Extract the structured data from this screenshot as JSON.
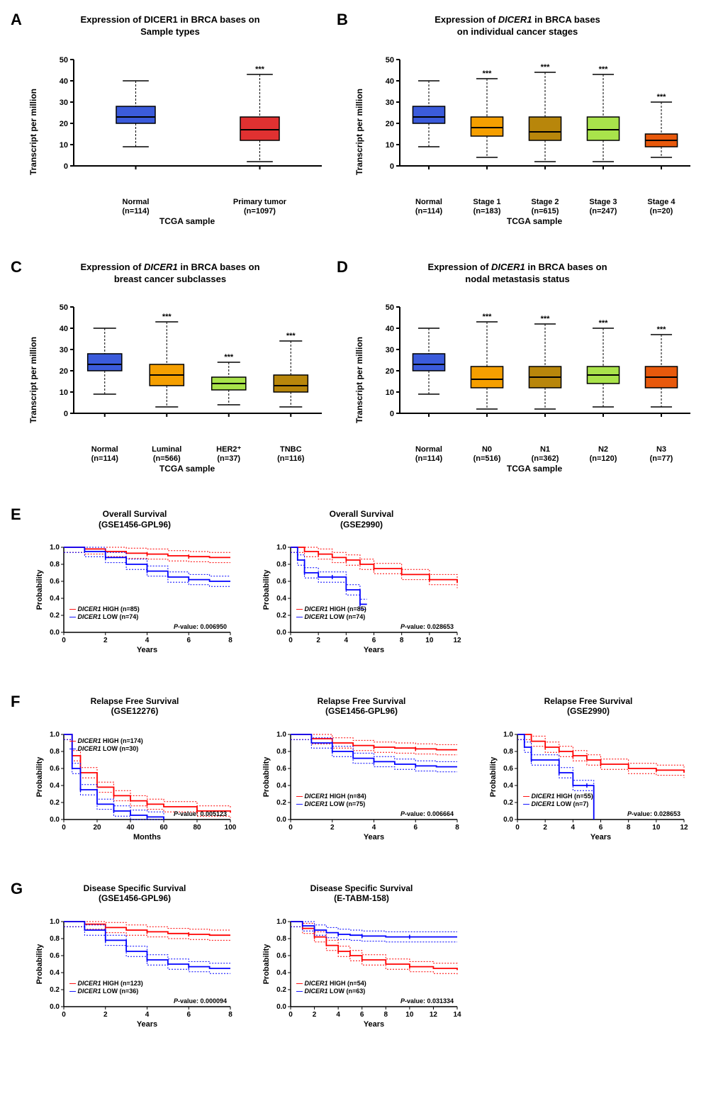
{
  "panelA": {
    "label": "A",
    "title_l1": "Expression of DICER1 in BRCA bases on",
    "title_l2": "Sample types",
    "ylabel": "Transcript per million",
    "xlabel": "TCGA sample",
    "ylim": [
      0,
      50
    ],
    "ytick_step": 10,
    "categories": [
      {
        "label_l1": "Normal",
        "label_l2": "(n=114)",
        "color": "#3b5bdb",
        "q1": 20,
        "med": 23,
        "q3": 28,
        "wlo": 9,
        "whi": 40,
        "sig": ""
      },
      {
        "label_l1": "Primary tumor",
        "label_l2": "(n=1097)",
        "color": "#e03131",
        "q1": 12,
        "med": 17,
        "q3": 23,
        "wlo": 2,
        "whi": 43,
        "sig": "***"
      }
    ]
  },
  "panelB": {
    "label": "B",
    "title_l1": "Expression of DICER1 in BRCA bases",
    "title_l2": "on individual cancer stages",
    "title_italic": true,
    "ylabel": "Transcript per million",
    "xlabel": "TCGA sample",
    "ylim": [
      0,
      50
    ],
    "ytick_step": 10,
    "categories": [
      {
        "label_l1": "Normal",
        "label_l2": "(n=114)",
        "color": "#3b5bdb",
        "q1": 20,
        "med": 23,
        "q3": 28,
        "wlo": 9,
        "whi": 40,
        "sig": ""
      },
      {
        "label_l1": "Stage 1",
        "label_l2": "(n=183)",
        "color": "#f59f00",
        "q1": 14,
        "med": 18,
        "q3": 23,
        "wlo": 4,
        "whi": 41,
        "sig": "***"
      },
      {
        "label_l1": "Stage 2",
        "label_l2": "(n=615)",
        "color": "#b8860b",
        "q1": 12,
        "med": 16,
        "q3": 23,
        "wlo": 2,
        "whi": 44,
        "sig": "***"
      },
      {
        "label_l1": "Stage 3",
        "label_l2": "(n=247)",
        "color": "#a9e34b",
        "q1": 12,
        "med": 17,
        "q3": 23,
        "wlo": 2,
        "whi": 43,
        "sig": "***"
      },
      {
        "label_l1": "Stage 4",
        "label_l2": "(n=20)",
        "color": "#e8590c",
        "q1": 9,
        "med": 12,
        "q3": 15,
        "wlo": 4,
        "whi": 30,
        "sig": "***"
      }
    ]
  },
  "panelC": {
    "label": "C",
    "title_l1": "Expression of DICER1 in BRCA bases on",
    "title_l2": "breast cancer subclasses",
    "title_italic": true,
    "ylabel": "Transcript per million",
    "xlabel": "TCGA sample",
    "ylim": [
      0,
      50
    ],
    "ytick_step": 10,
    "categories": [
      {
        "label_l1": "Normal",
        "label_l2": "(n=114)",
        "color": "#3b5bdb",
        "q1": 20,
        "med": 23,
        "q3": 28,
        "wlo": 9,
        "whi": 40,
        "sig": ""
      },
      {
        "label_l1": "Luminal",
        "label_l2": "(n=566)",
        "color": "#f59f00",
        "q1": 13,
        "med": 18,
        "q3": 23,
        "wlo": 3,
        "whi": 43,
        "sig": "***"
      },
      {
        "label_l1": "HER2⁺",
        "label_l2": "(n=37)",
        "color": "#a9e34b",
        "q1": 11,
        "med": 14,
        "q3": 17,
        "wlo": 4,
        "whi": 24,
        "sig": "***"
      },
      {
        "label_l1": "TNBC",
        "label_l2": "(n=116)",
        "color": "#b8860b",
        "q1": 10,
        "med": 13,
        "q3": 18,
        "wlo": 3,
        "whi": 34,
        "sig": "***"
      }
    ]
  },
  "panelD": {
    "label": "D",
    "title_l1": "Expression of DICER1 in BRCA bases on",
    "title_l2": "nodal metastasis status",
    "title_italic": true,
    "ylabel": "Transcript per million",
    "xlabel": "TCGA sample",
    "ylim": [
      0,
      50
    ],
    "ytick_step": 10,
    "categories": [
      {
        "label_l1": "Normal",
        "label_l2": "(n=114)",
        "color": "#3b5bdb",
        "q1": 20,
        "med": 23,
        "q3": 28,
        "wlo": 9,
        "whi": 40,
        "sig": ""
      },
      {
        "label_l1": "N0",
        "label_l2": "(n=516)",
        "color": "#f59f00",
        "q1": 12,
        "med": 16,
        "q3": 22,
        "wlo": 2,
        "whi": 43,
        "sig": "***"
      },
      {
        "label_l1": "N1",
        "label_l2": "(n=362)",
        "color": "#b8860b",
        "q1": 12,
        "med": 17,
        "q3": 22,
        "wlo": 2,
        "whi": 42,
        "sig": "***"
      },
      {
        "label_l1": "N2",
        "label_l2": "(n=120)",
        "color": "#a9e34b",
        "q1": 14,
        "med": 18,
        "q3": 22,
        "wlo": 3,
        "whi": 40,
        "sig": "***"
      },
      {
        "label_l1": "N3",
        "label_l2": "(n=77)",
        "color": "#e8590c",
        "q1": 12,
        "med": 17,
        "q3": 22,
        "wlo": 3,
        "whi": 37,
        "sig": "***"
      }
    ]
  },
  "panelE": {
    "label": "E",
    "charts": [
      {
        "title_l1": "Overall Survival",
        "title_l2": "(GSE1456-GPL96)",
        "xlabel": "Years",
        "ylabel": "Probability",
        "xmax": 8,
        "xstep": 2,
        "high_n": "85",
        "low_n": "74",
        "pvalue": "0.006950",
        "high_curve": [
          [
            0,
            1.0
          ],
          [
            1,
            0.98
          ],
          [
            2,
            0.95
          ],
          [
            3,
            0.93
          ],
          [
            4,
            0.92
          ],
          [
            5,
            0.9
          ],
          [
            6,
            0.89
          ],
          [
            7,
            0.88
          ],
          [
            8,
            0.88
          ]
        ],
        "low_curve": [
          [
            0,
            1.0
          ],
          [
            1,
            0.95
          ],
          [
            2,
            0.88
          ],
          [
            3,
            0.8
          ],
          [
            4,
            0.72
          ],
          [
            5,
            0.65
          ],
          [
            6,
            0.62
          ],
          [
            7,
            0.6
          ],
          [
            8,
            0.6
          ]
        ]
      },
      {
        "title_l1": "Overall Survival",
        "title_l2": "(GSE2990)",
        "xlabel": "Years",
        "ylabel": "Probability",
        "xmax": 12,
        "xstep": 2,
        "high_n": "85",
        "low_n": "74",
        "pvalue": "0.028653",
        "high_curve": [
          [
            0,
            1.0
          ],
          [
            1,
            0.95
          ],
          [
            2,
            0.92
          ],
          [
            3,
            0.88
          ],
          [
            4,
            0.85
          ],
          [
            5,
            0.8
          ],
          [
            6,
            0.75
          ],
          [
            8,
            0.68
          ],
          [
            10,
            0.62
          ],
          [
            12,
            0.58
          ]
        ],
        "low_curve": [
          [
            0,
            1.0
          ],
          [
            0.5,
            0.85
          ],
          [
            1,
            0.7
          ],
          [
            2,
            0.65
          ],
          [
            3,
            0.65
          ],
          [
            4,
            0.5
          ],
          [
            5,
            0.33
          ],
          [
            5.5,
            0.33
          ]
        ]
      }
    ]
  },
  "panelF": {
    "label": "F",
    "charts": [
      {
        "title_l1": "Relapse Free Survival",
        "title_l2": "(GSE12276)",
        "xlabel": "Months",
        "ylabel": "Probability",
        "xmax": 100,
        "xstep": 20,
        "high_n": "174",
        "low_n": "30",
        "pvalue": "0.005123",
        "legend_pos": "top",
        "high_curve": [
          [
            0,
            1.0
          ],
          [
            5,
            0.75
          ],
          [
            10,
            0.55
          ],
          [
            20,
            0.38
          ],
          [
            30,
            0.28
          ],
          [
            40,
            0.22
          ],
          [
            50,
            0.18
          ],
          [
            60,
            0.15
          ],
          [
            80,
            0.1
          ],
          [
            100,
            0.08
          ]
        ],
        "low_curve": [
          [
            0,
            1.0
          ],
          [
            5,
            0.6
          ],
          [
            10,
            0.35
          ],
          [
            20,
            0.18
          ],
          [
            30,
            0.1
          ],
          [
            40,
            0.05
          ],
          [
            50,
            0.03
          ],
          [
            60,
            0.0
          ]
        ]
      },
      {
        "title_l1": "Relapse Free Survival",
        "title_l2": "(GSE1456-GPL96)",
        "xlabel": "Years",
        "ylabel": "Probability",
        "xmax": 8,
        "xstep": 2,
        "high_n": "84",
        "low_n": "75",
        "pvalue": "0.006664",
        "high_curve": [
          [
            0,
            1.0
          ],
          [
            1,
            0.95
          ],
          [
            2,
            0.9
          ],
          [
            3,
            0.87
          ],
          [
            4,
            0.85
          ],
          [
            5,
            0.84
          ],
          [
            6,
            0.83
          ],
          [
            7,
            0.82
          ],
          [
            8,
            0.82
          ]
        ],
        "low_curve": [
          [
            0,
            1.0
          ],
          [
            1,
            0.9
          ],
          [
            2,
            0.8
          ],
          [
            3,
            0.72
          ],
          [
            4,
            0.68
          ],
          [
            5,
            0.65
          ],
          [
            6,
            0.63
          ],
          [
            7,
            0.62
          ],
          [
            8,
            0.62
          ]
        ]
      },
      {
        "title_l1": "Relapse Free Survival",
        "title_l2": "(GSE2990)",
        "xlabel": "Years",
        "ylabel": "Probability",
        "xmax": 12,
        "xstep": 2,
        "high_n": "55",
        "low_n": "7",
        "pvalue": "0.028653",
        "high_curve": [
          [
            0,
            1.0
          ],
          [
            1,
            0.92
          ],
          [
            2,
            0.85
          ],
          [
            3,
            0.8
          ],
          [
            4,
            0.75
          ],
          [
            5,
            0.7
          ],
          [
            6,
            0.65
          ],
          [
            8,
            0.6
          ],
          [
            10,
            0.58
          ],
          [
            12,
            0.55
          ]
        ],
        "low_curve": [
          [
            0,
            1.0
          ],
          [
            0.5,
            0.85
          ],
          [
            1,
            0.7
          ],
          [
            2,
            0.7
          ],
          [
            3,
            0.55
          ],
          [
            4,
            0.4
          ],
          [
            5,
            0.4
          ],
          [
            5.5,
            0.0
          ]
        ]
      }
    ]
  },
  "panelG": {
    "label": "G",
    "charts": [
      {
        "title_l1": "Disease Specific Survival",
        "title_l2": "(GSE1456-GPL96)",
        "xlabel": "Years",
        "ylabel": "Probability",
        "xmax": 8,
        "xstep": 2,
        "high_n": "123",
        "low_n": "36",
        "pvalue": "0.000094",
        "high_curve": [
          [
            0,
            1.0
          ],
          [
            1,
            0.97
          ],
          [
            2,
            0.93
          ],
          [
            3,
            0.9
          ],
          [
            4,
            0.88
          ],
          [
            5,
            0.86
          ],
          [
            6,
            0.85
          ],
          [
            7,
            0.84
          ],
          [
            8,
            0.84
          ]
        ],
        "low_curve": [
          [
            0,
            1.0
          ],
          [
            1,
            0.9
          ],
          [
            2,
            0.78
          ],
          [
            3,
            0.65
          ],
          [
            4,
            0.55
          ],
          [
            5,
            0.5
          ],
          [
            6,
            0.47
          ],
          [
            7,
            0.45
          ],
          [
            8,
            0.45
          ]
        ]
      },
      {
        "title_l1": "Disease Specific Survival",
        "title_l2": "(E-TABM-158)",
        "xlabel": "Years",
        "ylabel": "Probability",
        "xmax": 14,
        "xstep": 2,
        "high_n": "54",
        "low_n": "63",
        "pvalue": "0.031334",
        "high_curve": [
          [
            0,
            1.0
          ],
          [
            1,
            0.92
          ],
          [
            2,
            0.82
          ],
          [
            3,
            0.72
          ],
          [
            4,
            0.65
          ],
          [
            5,
            0.6
          ],
          [
            6,
            0.55
          ],
          [
            8,
            0.5
          ],
          [
            10,
            0.47
          ],
          [
            12,
            0.45
          ],
          [
            14,
            0.43
          ]
        ],
        "low_curve": [
          [
            0,
            1.0
          ],
          [
            1,
            0.95
          ],
          [
            2,
            0.9
          ],
          [
            3,
            0.87
          ],
          [
            4,
            0.85
          ],
          [
            5,
            0.84
          ],
          [
            6,
            0.83
          ],
          [
            8,
            0.82
          ],
          [
            10,
            0.82
          ],
          [
            12,
            0.82
          ],
          [
            14,
            0.82
          ]
        ]
      }
    ]
  },
  "colors": {
    "high": "#ff0000",
    "low": "#0000ff",
    "axis": "#000000"
  },
  "italic_gene": "DICER1"
}
